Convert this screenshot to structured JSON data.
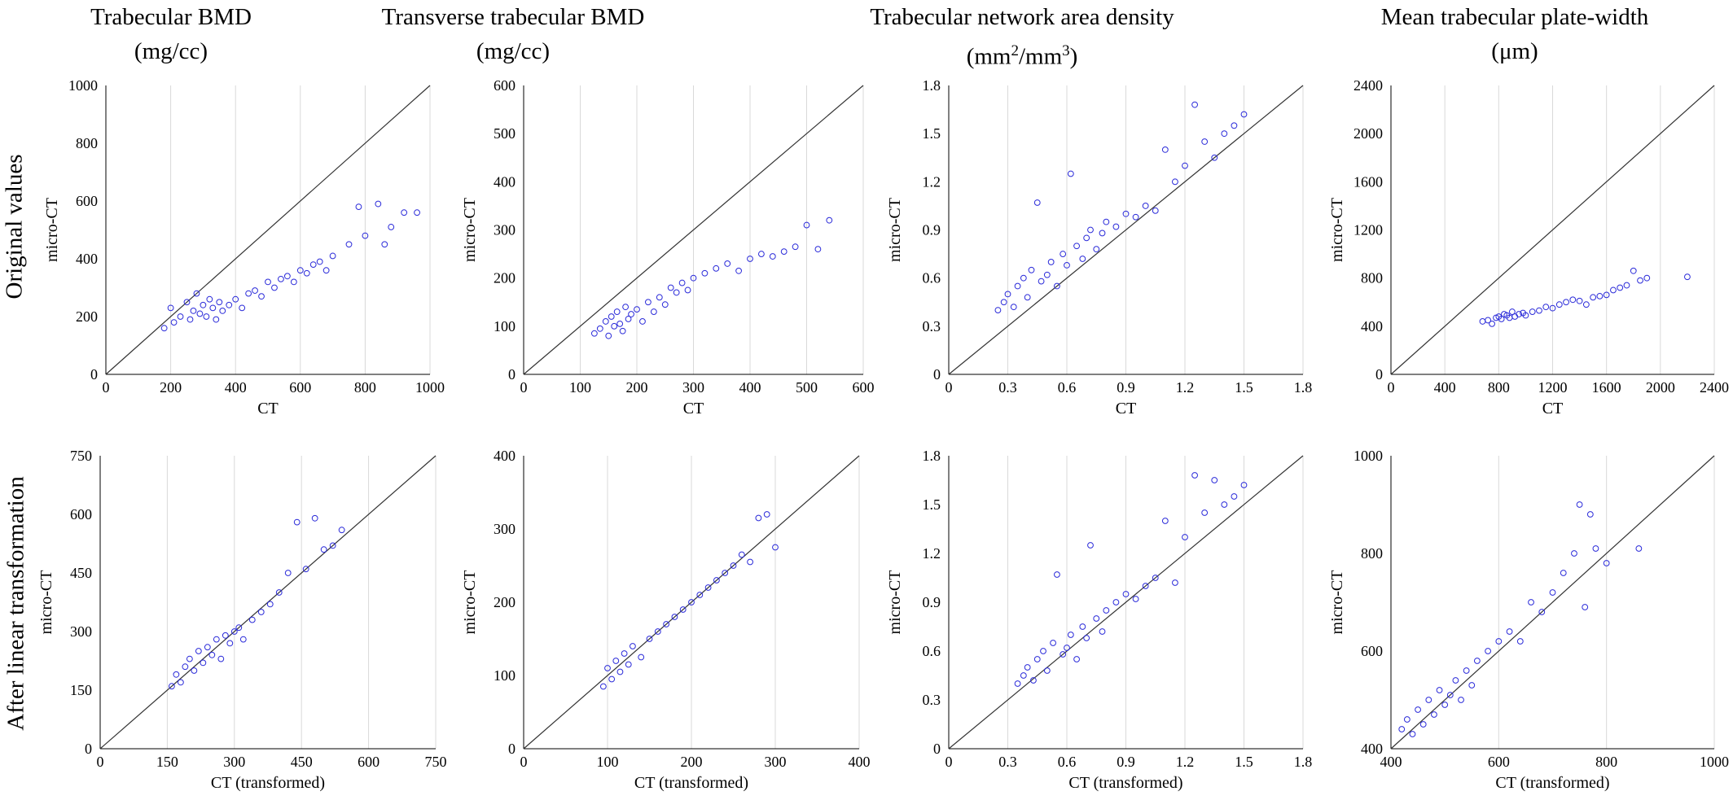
{
  "columns": [
    {
      "title": "Trabecular BMD",
      "unit": "(mg/cc)"
    },
    {
      "title": "Transverse trabecular BMD",
      "unit": "(mg/cc)"
    },
    {
      "title": "Trabecular network area density",
      "unit_pre": "(mm",
      "unit_sup1": "2",
      "unit_mid": "/mm",
      "unit_sup2": "3",
      "unit_post": ")"
    },
    {
      "title": "Mean trabecular plate-width",
      "unit": "(μm)"
    }
  ],
  "rows": [
    "Original values",
    "After linear transformation"
  ],
  "colors": {
    "points": "#2b2bd9",
    "identity_line": "#333333",
    "grid": "#d9d9d9",
    "axis": "#000000"
  },
  "chart_data": [
    {
      "type": "scatter",
      "title": "Trabecular BMD",
      "row": "Original values",
      "xlabel": "CT",
      "ylabel": "micro-CT",
      "xlim": [
        0,
        1000
      ],
      "ylim": [
        0,
        1000
      ],
      "xticks": [
        0,
        200,
        400,
        600,
        800,
        1000
      ],
      "yticks": [
        0,
        200,
        400,
        600,
        800,
        1000
      ],
      "grid": "vertical",
      "identity_line": true,
      "x": [
        180,
        200,
        210,
        230,
        250,
        260,
        270,
        280,
        290,
        300,
        310,
        320,
        330,
        340,
        350,
        360,
        380,
        400,
        420,
        440,
        460,
        480,
        500,
        520,
        540,
        560,
        580,
        600,
        620,
        640,
        660,
        680,
        700,
        750,
        780,
        800,
        840,
        860,
        880,
        920,
        960
      ],
      "y": [
        160,
        230,
        180,
        200,
        250,
        190,
        220,
        280,
        210,
        240,
        200,
        260,
        230,
        190,
        250,
        220,
        240,
        260,
        230,
        280,
        290,
        270,
        320,
        300,
        330,
        340,
        320,
        360,
        350,
        380,
        390,
        360,
        410,
        450,
        580,
        480,
        590,
        450,
        510,
        560,
        560
      ]
    },
    {
      "type": "scatter",
      "title": "Transverse trabecular BMD",
      "row": "Original values",
      "xlabel": "CT",
      "ylabel": "micro-CT",
      "xlim": [
        0,
        600
      ],
      "ylim": [
        0,
        600
      ],
      "xticks": [
        0,
        100,
        200,
        300,
        400,
        500,
        600
      ],
      "yticks": [
        0,
        100,
        200,
        300,
        400,
        500,
        600
      ],
      "grid": "vertical",
      "identity_line": true,
      "x": [
        125,
        135,
        145,
        150,
        155,
        160,
        165,
        170,
        175,
        180,
        185,
        190,
        200,
        210,
        220,
        230,
        240,
        250,
        260,
        270,
        280,
        290,
        300,
        320,
        340,
        360,
        380,
        400,
        420,
        440,
        460,
        480,
        500,
        520,
        540
      ],
      "y": [
        85,
        95,
        110,
        80,
        120,
        100,
        130,
        105,
        90,
        140,
        115,
        125,
        135,
        110,
        150,
        130,
        160,
        145,
        180,
        170,
        190,
        175,
        200,
        210,
        220,
        230,
        215,
        240,
        250,
        245,
        255,
        265,
        310,
        260,
        320
      ]
    },
    {
      "type": "scatter",
      "title": "Trabecular network area density",
      "row": "Original values",
      "xlabel": "CT",
      "ylabel": "micro-CT",
      "xlim": [
        0,
        1.8
      ],
      "ylim": [
        0,
        1.8
      ],
      "xticks": [
        0,
        0.3,
        0.6,
        0.9,
        1.2,
        1.5,
        1.8
      ],
      "yticks": [
        0,
        0.3,
        0.6,
        0.9,
        1.2,
        1.5,
        1.8
      ],
      "grid": "vertical",
      "identity_line": true,
      "x": [
        0.25,
        0.28,
        0.3,
        0.33,
        0.35,
        0.38,
        0.4,
        0.42,
        0.45,
        0.47,
        0.5,
        0.52,
        0.55,
        0.58,
        0.6,
        0.62,
        0.65,
        0.68,
        0.7,
        0.72,
        0.75,
        0.78,
        0.8,
        0.85,
        0.9,
        0.95,
        1.0,
        1.05,
        1.1,
        1.15,
        1.2,
        1.25,
        1.3,
        1.35,
        1.4,
        1.45,
        1.5
      ],
      "y": [
        0.4,
        0.45,
        0.5,
        0.42,
        0.55,
        0.6,
        0.48,
        0.65,
        1.07,
        0.58,
        0.62,
        0.7,
        0.55,
        0.75,
        0.68,
        1.25,
        0.8,
        0.72,
        0.85,
        0.9,
        0.78,
        0.88,
        0.95,
        0.92,
        1.0,
        0.98,
        1.05,
        1.02,
        1.4,
        1.2,
        1.3,
        1.68,
        1.45,
        1.35,
        1.5,
        1.55,
        1.62
      ]
    },
    {
      "type": "scatter",
      "title": "Mean trabecular plate-width",
      "row": "Original values",
      "xlabel": "CT",
      "ylabel": "micro-CT",
      "xlim": [
        0,
        2400
      ],
      "ylim": [
        0,
        2400
      ],
      "xticks": [
        0,
        400,
        800,
        1200,
        1600,
        2000,
        2400
      ],
      "yticks": [
        0,
        400,
        800,
        1200,
        1600,
        2000,
        2400
      ],
      "grid": "vertical",
      "identity_line": true,
      "x": [
        680,
        720,
        750,
        780,
        800,
        820,
        840,
        860,
        880,
        900,
        920,
        950,
        980,
        1000,
        1050,
        1100,
        1150,
        1200,
        1250,
        1300,
        1350,
        1400,
        1450,
        1500,
        1550,
        1600,
        1650,
        1700,
        1750,
        1800,
        1850,
        1900,
        2200
      ],
      "y": [
        440,
        450,
        420,
        470,
        480,
        460,
        500,
        490,
        470,
        520,
        480,
        500,
        510,
        490,
        520,
        530,
        560,
        550,
        580,
        600,
        620,
        610,
        580,
        640,
        650,
        660,
        700,
        720,
        740,
        860,
        780,
        800,
        810
      ]
    },
    {
      "type": "scatter",
      "title": "Trabecular BMD",
      "row": "After linear transformation",
      "xlabel": "CT (transformed)",
      "ylabel": "micro-CT",
      "xlim": [
        0,
        750
      ],
      "ylim": [
        0,
        750
      ],
      "xticks": [
        0,
        150,
        300,
        450,
        600,
        750
      ],
      "yticks": [
        0,
        150,
        300,
        450,
        600,
        750
      ],
      "grid": "vertical",
      "identity_line": true,
      "x": [
        160,
        170,
        180,
        190,
        200,
        210,
        220,
        230,
        240,
        250,
        260,
        270,
        280,
        290,
        300,
        310,
        320,
        340,
        360,
        380,
        400,
        420,
        440,
        460,
        480,
        500,
        520,
        540
      ],
      "y": [
        160,
        190,
        170,
        210,
        230,
        200,
        250,
        220,
        260,
        240,
        280,
        230,
        290,
        270,
        300,
        310,
        280,
        330,
        350,
        370,
        400,
        450,
        580,
        460,
        590,
        510,
        520,
        560
      ]
    },
    {
      "type": "scatter",
      "title": "Transverse trabecular BMD",
      "row": "After linear transformation",
      "xlabel": "CT (transformed)",
      "ylabel": "micro-CT",
      "xlim": [
        0,
        400
      ],
      "ylim": [
        0,
        400
      ],
      "xticks": [
        0,
        100,
        200,
        300,
        400
      ],
      "yticks": [
        0,
        100,
        200,
        300,
        400
      ],
      "grid": "vertical",
      "identity_line": true,
      "x": [
        95,
        100,
        105,
        110,
        115,
        120,
        125,
        130,
        140,
        150,
        160,
        170,
        180,
        190,
        200,
        210,
        220,
        230,
        240,
        250,
        260,
        270,
        280,
        290,
        300
      ],
      "y": [
        85,
        110,
        95,
        120,
        105,
        130,
        115,
        140,
        125,
        150,
        160,
        170,
        180,
        190,
        200,
        210,
        220,
        230,
        240,
        250,
        265,
        255,
        315,
        320,
        275
      ]
    },
    {
      "type": "scatter",
      "title": "Trabecular network area density",
      "row": "After linear transformation",
      "xlabel": "CT (transformed)",
      "ylabel": "micro-CT",
      "xlim": [
        0,
        1.8
      ],
      "ylim": [
        0,
        1.8
      ],
      "xticks": [
        0,
        0.3,
        0.6,
        0.9,
        1.2,
        1.5,
        1.8
      ],
      "yticks": [
        0,
        0.3,
        0.6,
        0.9,
        1.2,
        1.5,
        1.8
      ],
      "grid": "vertical",
      "identity_line": true,
      "x": [
        0.35,
        0.38,
        0.4,
        0.43,
        0.45,
        0.48,
        0.5,
        0.53,
        0.55,
        0.58,
        0.6,
        0.62,
        0.65,
        0.68,
        0.7,
        0.72,
        0.75,
        0.78,
        0.8,
        0.85,
        0.9,
        0.95,
        1.0,
        1.05,
        1.1,
        1.15,
        1.2,
        1.25,
        1.3,
        1.35,
        1.4,
        1.45,
        1.5
      ],
      "y": [
        0.4,
        0.45,
        0.5,
        0.42,
        0.55,
        0.6,
        0.48,
        0.65,
        1.07,
        0.58,
        0.62,
        0.7,
        0.55,
        0.75,
        0.68,
        1.25,
        0.8,
        0.72,
        0.85,
        0.9,
        0.95,
        0.92,
        1.0,
        1.05,
        1.4,
        1.02,
        1.3,
        1.68,
        1.45,
        1.65,
        1.5,
        1.55,
        1.62
      ]
    },
    {
      "type": "scatter",
      "title": "Mean trabecular plate-width",
      "row": "After linear transformation",
      "xlabel": "CT (transformed)",
      "ylabel": "micro-CT",
      "xlim": [
        400,
        1000
      ],
      "ylim": [
        400,
        1000
      ],
      "xticks": [
        400,
        600,
        800,
        1000
      ],
      "yticks": [
        400,
        600,
        800,
        1000
      ],
      "grid": "vertical",
      "identity_line": true,
      "x": [
        420,
        430,
        440,
        450,
        460,
        470,
        480,
        490,
        500,
        510,
        520,
        530,
        540,
        550,
        560,
        580,
        600,
        620,
        640,
        660,
        680,
        700,
        720,
        740,
        750,
        760,
        770,
        780,
        800,
        860
      ],
      "y": [
        440,
        460,
        430,
        480,
        450,
        500,
        470,
        520,
        490,
        510,
        540,
        500,
        560,
        530,
        580,
        600,
        620,
        640,
        620,
        700,
        680,
        720,
        760,
        800,
        900,
        690,
        880,
        810,
        780,
        810
      ]
    }
  ]
}
